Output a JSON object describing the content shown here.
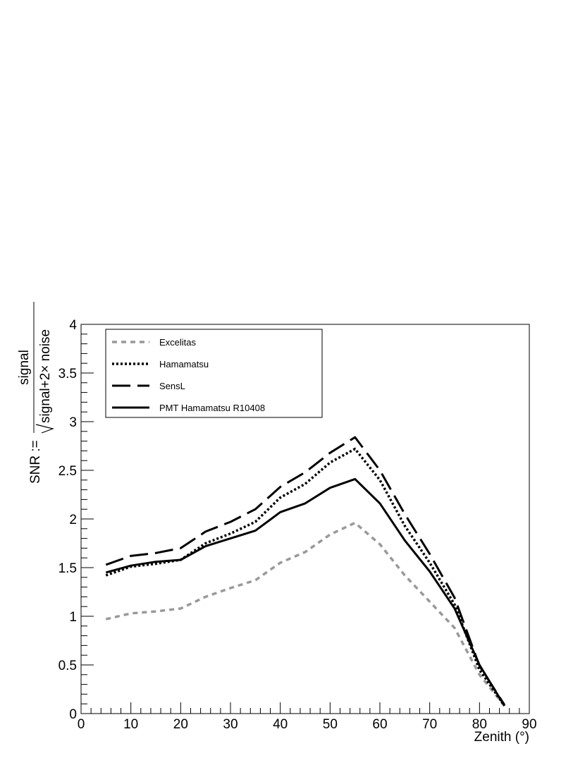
{
  "chart_data": {
    "type": "line",
    "title": "",
    "xlabel": "Zenith (°)",
    "ylabel": {
      "prefix": "SNR :=",
      "numerator": "signal",
      "denominator": "signal+2× noise"
    },
    "xlim": [
      0,
      90
    ],
    "ylim": [
      0,
      4
    ],
    "x_ticks": [
      "0",
      "10",
      "20",
      "30",
      "40",
      "50",
      "60",
      "70",
      "80",
      "90"
    ],
    "y_ticks": [
      "0",
      "0.5",
      "1",
      "1.5",
      "2",
      "2.5",
      "3",
      "3.5",
      "4"
    ],
    "grid": false,
    "legend_position": "top-left",
    "x": [
      5,
      10,
      15,
      20,
      25,
      30,
      35,
      40,
      45,
      50,
      55,
      60,
      65,
      70,
      75,
      80,
      85
    ],
    "series": [
      {
        "name": "Excelitas",
        "style": "short-dash",
        "color": "#999999",
        "values": [
          0.97,
          1.03,
          1.05,
          1.08,
          1.2,
          1.29,
          1.37,
          1.55,
          1.66,
          1.84,
          1.96,
          1.74,
          1.42,
          1.15,
          0.88,
          0.4,
          0.08
        ]
      },
      {
        "name": "Hamamatsu",
        "style": "dotted",
        "color": "#000000",
        "values": [
          1.42,
          1.51,
          1.54,
          1.58,
          1.75,
          1.85,
          1.97,
          2.22,
          2.36,
          2.58,
          2.72,
          2.4,
          1.93,
          1.55,
          1.12,
          0.45,
          0.08
        ]
      },
      {
        "name": "SensL",
        "style": "long-dash",
        "color": "#000000",
        "values": [
          1.53,
          1.62,
          1.65,
          1.7,
          1.87,
          1.97,
          2.1,
          2.33,
          2.48,
          2.68,
          2.84,
          2.5,
          2.05,
          1.64,
          1.19,
          0.49,
          0.09
        ]
      },
      {
        "name": "PMT Hamamatsu R10408",
        "style": "solid",
        "color": "#000000",
        "values": [
          1.45,
          1.52,
          1.56,
          1.58,
          1.72,
          1.8,
          1.88,
          2.07,
          2.16,
          2.32,
          2.41,
          2.16,
          1.78,
          1.46,
          1.08,
          0.5,
          0.08
        ]
      }
    ]
  }
}
